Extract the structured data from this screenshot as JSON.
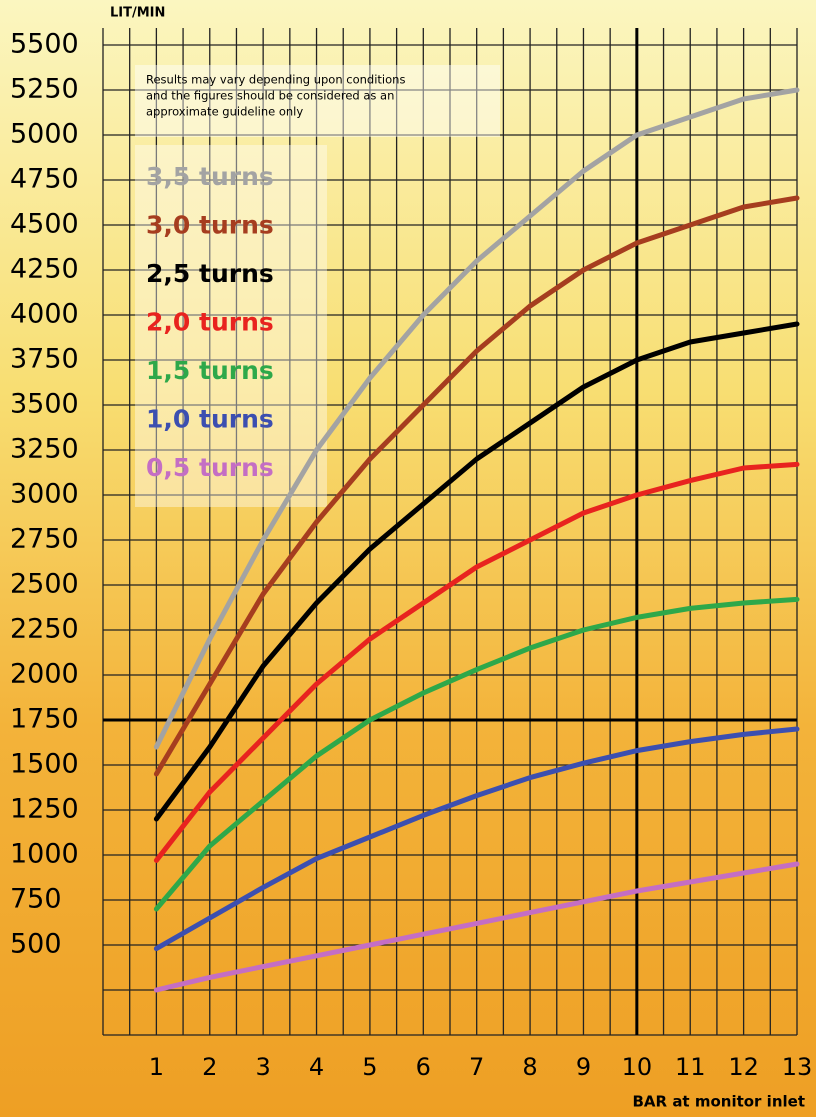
{
  "chart_data": {
    "type": "line",
    "y_axis_label": "LIT/MIN",
    "x_axis_label": "BAR at monitor inlet",
    "note": [
      "Results may vary depending upon conditions",
      "and the figures should be considered as an",
      "approximate guideline only"
    ],
    "x": [
      1,
      2,
      3,
      4,
      5,
      6,
      7,
      8,
      9,
      10,
      11,
      12,
      13
    ],
    "xlim": [
      0,
      13
    ],
    "xticks": [
      1,
      2,
      3,
      4,
      5,
      6,
      7,
      8,
      9,
      10,
      11,
      12,
      13
    ],
    "minor_xticks": [
      0,
      0.5,
      1.5,
      2.5,
      3.5,
      4.5,
      5.5,
      6.5,
      7.5,
      8.5,
      9.5,
      10.5,
      11.5,
      12.5
    ],
    "ylim": [
      0,
      5500
    ],
    "yticks": [
      500,
      750,
      1000,
      1250,
      1500,
      1750,
      2000,
      2250,
      2500,
      2750,
      3000,
      3250,
      3500,
      3750,
      4000,
      4250,
      4500,
      4750,
      5000,
      5250,
      5500
    ],
    "minor_yticks": [
      0,
      250
    ],
    "reference_lines": {
      "x": 10,
      "y": 1750
    },
    "grid": true,
    "series": [
      {
        "name": "3,5 turns",
        "color": "#a3a3a3",
        "values": [
          1600,
          2200,
          2750,
          3250,
          3650,
          4000,
          4300,
          4550,
          4800,
          5000,
          5100,
          5200,
          5250
        ]
      },
      {
        "name": "3,0 turns",
        "color": "#a63d1f",
        "values": [
          1450,
          1950,
          2450,
          2850,
          3200,
          3500,
          3800,
          4050,
          4250,
          4400,
          4500,
          4600,
          4650
        ]
      },
      {
        "name": "2,5 turns",
        "color": "#000000",
        "values": [
          1200,
          1600,
          2050,
          2400,
          2700,
          2950,
          3200,
          3400,
          3600,
          3750,
          3850,
          3900,
          3950
        ]
      },
      {
        "name": "2,0 turns",
        "color": "#e8231f",
        "values": [
          970,
          1350,
          1650,
          1950,
          2200,
          2400,
          2600,
          2750,
          2900,
          3000,
          3080,
          3150,
          3170
        ]
      },
      {
        "name": "1,5 turns",
        "color": "#2ea84a",
        "values": [
          700,
          1050,
          1300,
          1550,
          1750,
          1900,
          2030,
          2150,
          2250,
          2320,
          2370,
          2400,
          2420
        ]
      },
      {
        "name": "1,0 turns",
        "color": "#3c4fb0",
        "values": [
          480,
          650,
          820,
          980,
          1100,
          1220,
          1330,
          1430,
          1510,
          1580,
          1630,
          1670,
          1700
        ]
      },
      {
        "name": "0,5 turns",
        "color": "#c46ec4",
        "values": [
          250,
          320,
          380,
          440,
          500,
          560,
          620,
          680,
          740,
          800,
          850,
          900,
          950
        ]
      }
    ]
  }
}
